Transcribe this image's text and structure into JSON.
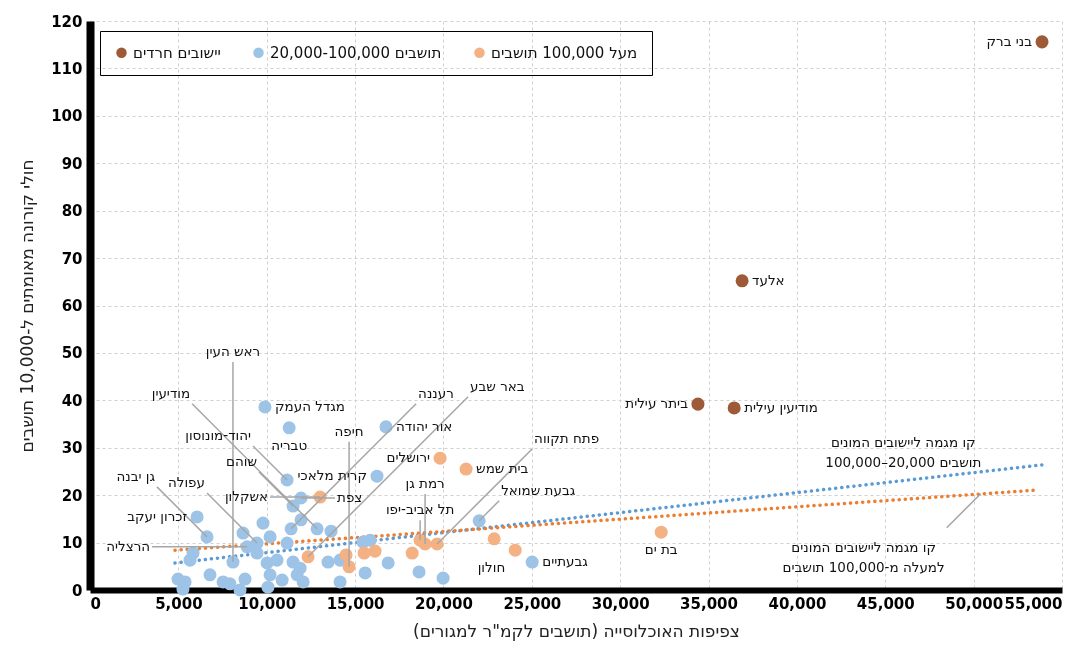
{
  "chart_data": {
    "type": "scatter",
    "xlabel": "צפיפות האוכלוסייה (תושבים לקמ\"ר למגורים)",
    "ylabel": "חולי קורונה מאומתים ל-10,000 תושבים",
    "xlim": [
      0,
      55000
    ],
    "xticks": [
      0,
      {
        "value": 5000,
        "label": "5,000"
      },
      {
        "value": 10000,
        "label": "10,000"
      },
      {
        "value": 15000,
        "label": "15,000"
      },
      {
        "value": 20000,
        "label": "20,000"
      },
      {
        "value": 25000,
        "label": "25,000"
      },
      {
        "value": 30000,
        "label": "30,000"
      },
      {
        "value": 35000,
        "label": "35,000"
      },
      {
        "value": 40000,
        "label": "40,000"
      },
      {
        "value": 45000,
        "label": "45,000"
      },
      {
        "value": 50000,
        "label": "50,000"
      },
      {
        "value": 55000,
        "label": "55,000"
      }
    ],
    "ylim": [
      0,
      120
    ],
    "yticks": [
      0,
      10,
      20,
      30,
      40,
      50,
      60,
      70,
      80,
      90,
      100,
      110,
      120
    ],
    "grid": true,
    "legend": "top left",
    "marker": "circle",
    "series": [
      {
        "name": "יישובים חרדים",
        "color": "#9e5a37",
        "x": [
          53870,
          36900,
          34400,
          36450
        ],
        "values": [
          115.6,
          65.2,
          39.2,
          38.4
        ]
      },
      {
        "name": "20,000-100,000 תושבים",
        "color": "#9dc3e6",
        "x": [
          9450,
          9900,
          11270,
          11150,
          11490,
          11940,
          11940,
          11380,
          9790,
          6060,
          6620,
          8660,
          10190,
          11150,
          12850,
          13640,
          8890,
          9450,
          8090,
          10020,
          10580,
          11490,
          11890,
          13470,
          14150,
          5660,
          5830,
          6790,
          7530,
          7920,
          8770,
          10190,
          10870,
          11720,
          12060,
          14150,
          4980,
          5380,
          5260,
          8490,
          10070,
          16750,
          16240,
          22020,
          25020,
          19980,
          18620,
          16870,
          15570,
          15450,
          15850
        ],
        "values": [
          9.9,
          38.6,
          34.2,
          23.2,
          17.7,
          19.4,
          14.8,
          12.9,
          14.1,
          15.4,
          11.2,
          12.0,
          11.2,
          9.9,
          12.9,
          12.4,
          9.1,
          7.8,
          5.9,
          5.7,
          6.3,
          5.9,
          4.6,
          5.9,
          6.3,
          6.3,
          7.8,
          3.2,
          1.7,
          1.3,
          2.3,
          3.2,
          2.1,
          3.2,
          1.7,
          1.7,
          2.3,
          1.7,
          0.2,
          0,
          0.6,
          34.4,
          24.0,
          14.6,
          5.9,
          2.5,
          3.8,
          5.7,
          3.6,
          10.1,
          10.5
        ]
      },
      {
        "name": "מעל 100,000 תושבים",
        "color": "#f4b183",
        "x": [
          19810,
          21280,
          32320,
          24060,
          22870,
          18680,
          18960,
          19640,
          18230,
          15510,
          16130,
          14490,
          14660,
          13020,
          12340
        ],
        "values": [
          27.8,
          25.5,
          12.2,
          8.4,
          10.8,
          10.5,
          9.7,
          9.7,
          7.8,
          7.8,
          8.2,
          7.4,
          4.9,
          19.6,
          7.0
        ]
      },
      {
        "type": "line",
        "marker": "none",
        "line_style": "dotted",
        "color": "#5b9bd5",
        "x": [
          4810,
          53900
        ],
        "values": [
          5.7,
          26.4
        ]
      },
      {
        "type": "line",
        "marker": "none",
        "line_style": "dotted",
        "color": "#ed7d31",
        "x": [
          4810,
          53660
        ],
        "values": [
          8.4,
          21.1
        ]
      }
    ],
    "annotations": [
      {
        "text": "בני ברק",
        "x": 53870,
        "y": 115.6
      },
      {
        "text": "אלעד",
        "x": 36900,
        "y": 65.2
      },
      {
        "text": "ביתר עילית",
        "x": 34400,
        "y": 39.2
      },
      {
        "text": "מודיעין עילית",
        "x": 36450,
        "y": 38.4
      },
      {
        "text": "מגדל העמק",
        "x": 9900,
        "y": 38.6
      },
      {
        "text": "טבריה",
        "x": 11270,
        "y": 34.2
      },
      {
        "text": "אור יהודה",
        "x": 16750,
        "y": 34.4
      },
      {
        "text": "ירושלים",
        "x": 19810,
        "y": 27.8
      },
      {
        "text": "בית שמש",
        "x": 21280,
        "y": 25.5
      },
      {
        "text": "קרית מלאכי",
        "x": 16240,
        "y": 24.0
      },
      {
        "text": "אשקלון",
        "x": 13020,
        "y": 19.6
      },
      {
        "text": "צפת",
        "x": 11940,
        "y": 19.4
      },
      {
        "text": "עפולה",
        "x": 9450,
        "y": 9.9
      },
      {
        "text": "שוהם",
        "x": 11490,
        "y": 17.7
      },
      {
        "text": "הרצליה",
        "x": 8890,
        "y": 9.1
      },
      {
        "text": "יהוד-מונוסון",
        "x": 11150,
        "y": 23.2
      },
      {
        "text": "רעננה",
        "x": 11380,
        "y": 12.9
      },
      {
        "text": "זכרון יעקב",
        "x": 6060,
        "y": 15.4
      },
      {
        "text": "באר שבע",
        "x": 12340,
        "y": 7.0
      },
      {
        "text": "מודיעין",
        "x": 12850,
        "y": 12.9
      },
      {
        "text": "תל אביב-יפו",
        "x": 18680,
        "y": 10.5
      },
      {
        "text": "גבעת שמואל",
        "x": 22020,
        "y": 14.6
      },
      {
        "text": "חולון",
        "x": 24060,
        "y": 8.4
      },
      {
        "text": "גבעתיים",
        "x": 25020,
        "y": 5.9
      },
      {
        "text": "בת ים",
        "x": 32320,
        "y": 12.2
      },
      {
        "text": "רמת גן",
        "x": 18960,
        "y": 9.7
      },
      {
        "text": "פתח תקווה",
        "x": 19640,
        "y": 9.7
      },
      {
        "text": "חיפה",
        "x": 14660,
        "y": 4.9
      },
      {
        "text": "גן יבנה",
        "x": 6620,
        "y": 11.2
      },
      {
        "text": "ראש העין",
        "x": 8090,
        "y": 5.9
      },
      {
        "text": "קו מגמה ליישובים המונים\n100,000–20,000 תושבים",
        "x": 51000,
        "y": 25.2
      },
      {
        "text": "קו מגמה ליישובים המונים\nלמעלה מ-100,000 תושבים",
        "x": 50400,
        "y": 20.3
      }
    ]
  }
}
